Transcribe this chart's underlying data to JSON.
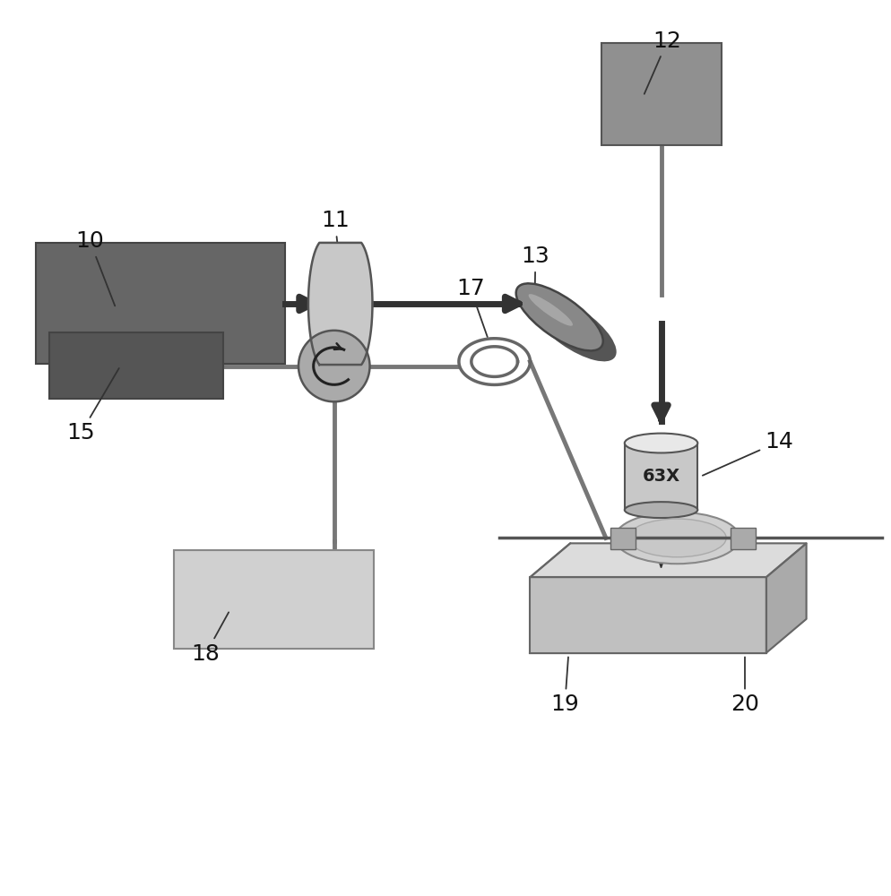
{
  "bg_color": "#ffffff",
  "box10_color": "#666666",
  "box12_color": "#909090",
  "box15_color": "#555555",
  "box18_color": "#d0d0d0",
  "mirror_color": "#888888",
  "obj_color": "#c8c8c8",
  "circ_color": "#aaaaaa",
  "stage_top_color": "#dcdcdc",
  "stage_front_color": "#c0c0c0",
  "stage_right_color": "#aaaaaa",
  "arrow_color": "#333333",
  "line_color": "#777777",
  "label_fontsize": 18
}
